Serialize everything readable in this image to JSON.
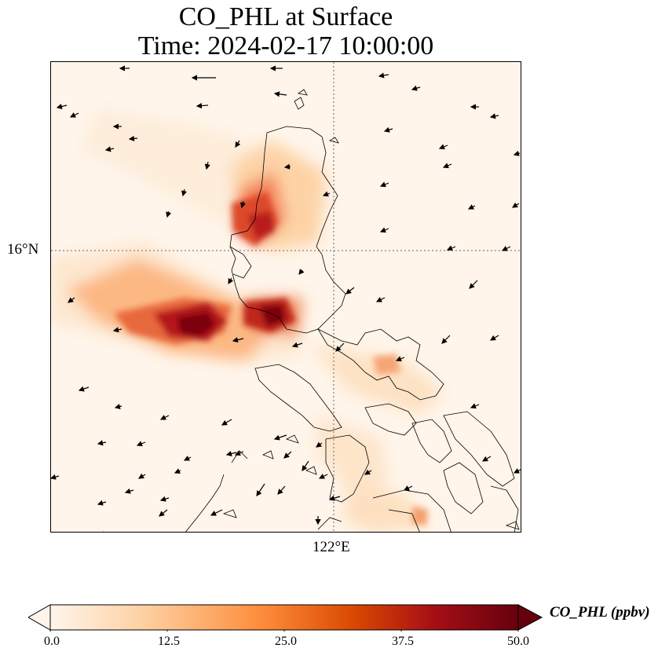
{
  "title": {
    "line1": "CO_PHL at Surface",
    "line2": "Time: 2024-02-17 10:00:00"
  },
  "axes": {
    "lat_tick": "16°N",
    "lon_tick": "122°E",
    "gridlines": "dotted"
  },
  "colorbar": {
    "label": "CO_PHL (ppbv)",
    "ticks": [
      "0.0",
      "12.5",
      "25.0",
      "37.5",
      "50.0"
    ],
    "min": 0,
    "max": 50,
    "extend": "both",
    "colormap": [
      "#fff5eb",
      "#fdd0a2",
      "#fd8d3c",
      "#d94801",
      "#a50f15",
      "#67000d"
    ]
  },
  "map": {
    "background": "#fff5ea",
    "coastline_color": "#000000",
    "wind_vectors": "black arrows",
    "max_concentration_color": "#8b0000"
  }
}
